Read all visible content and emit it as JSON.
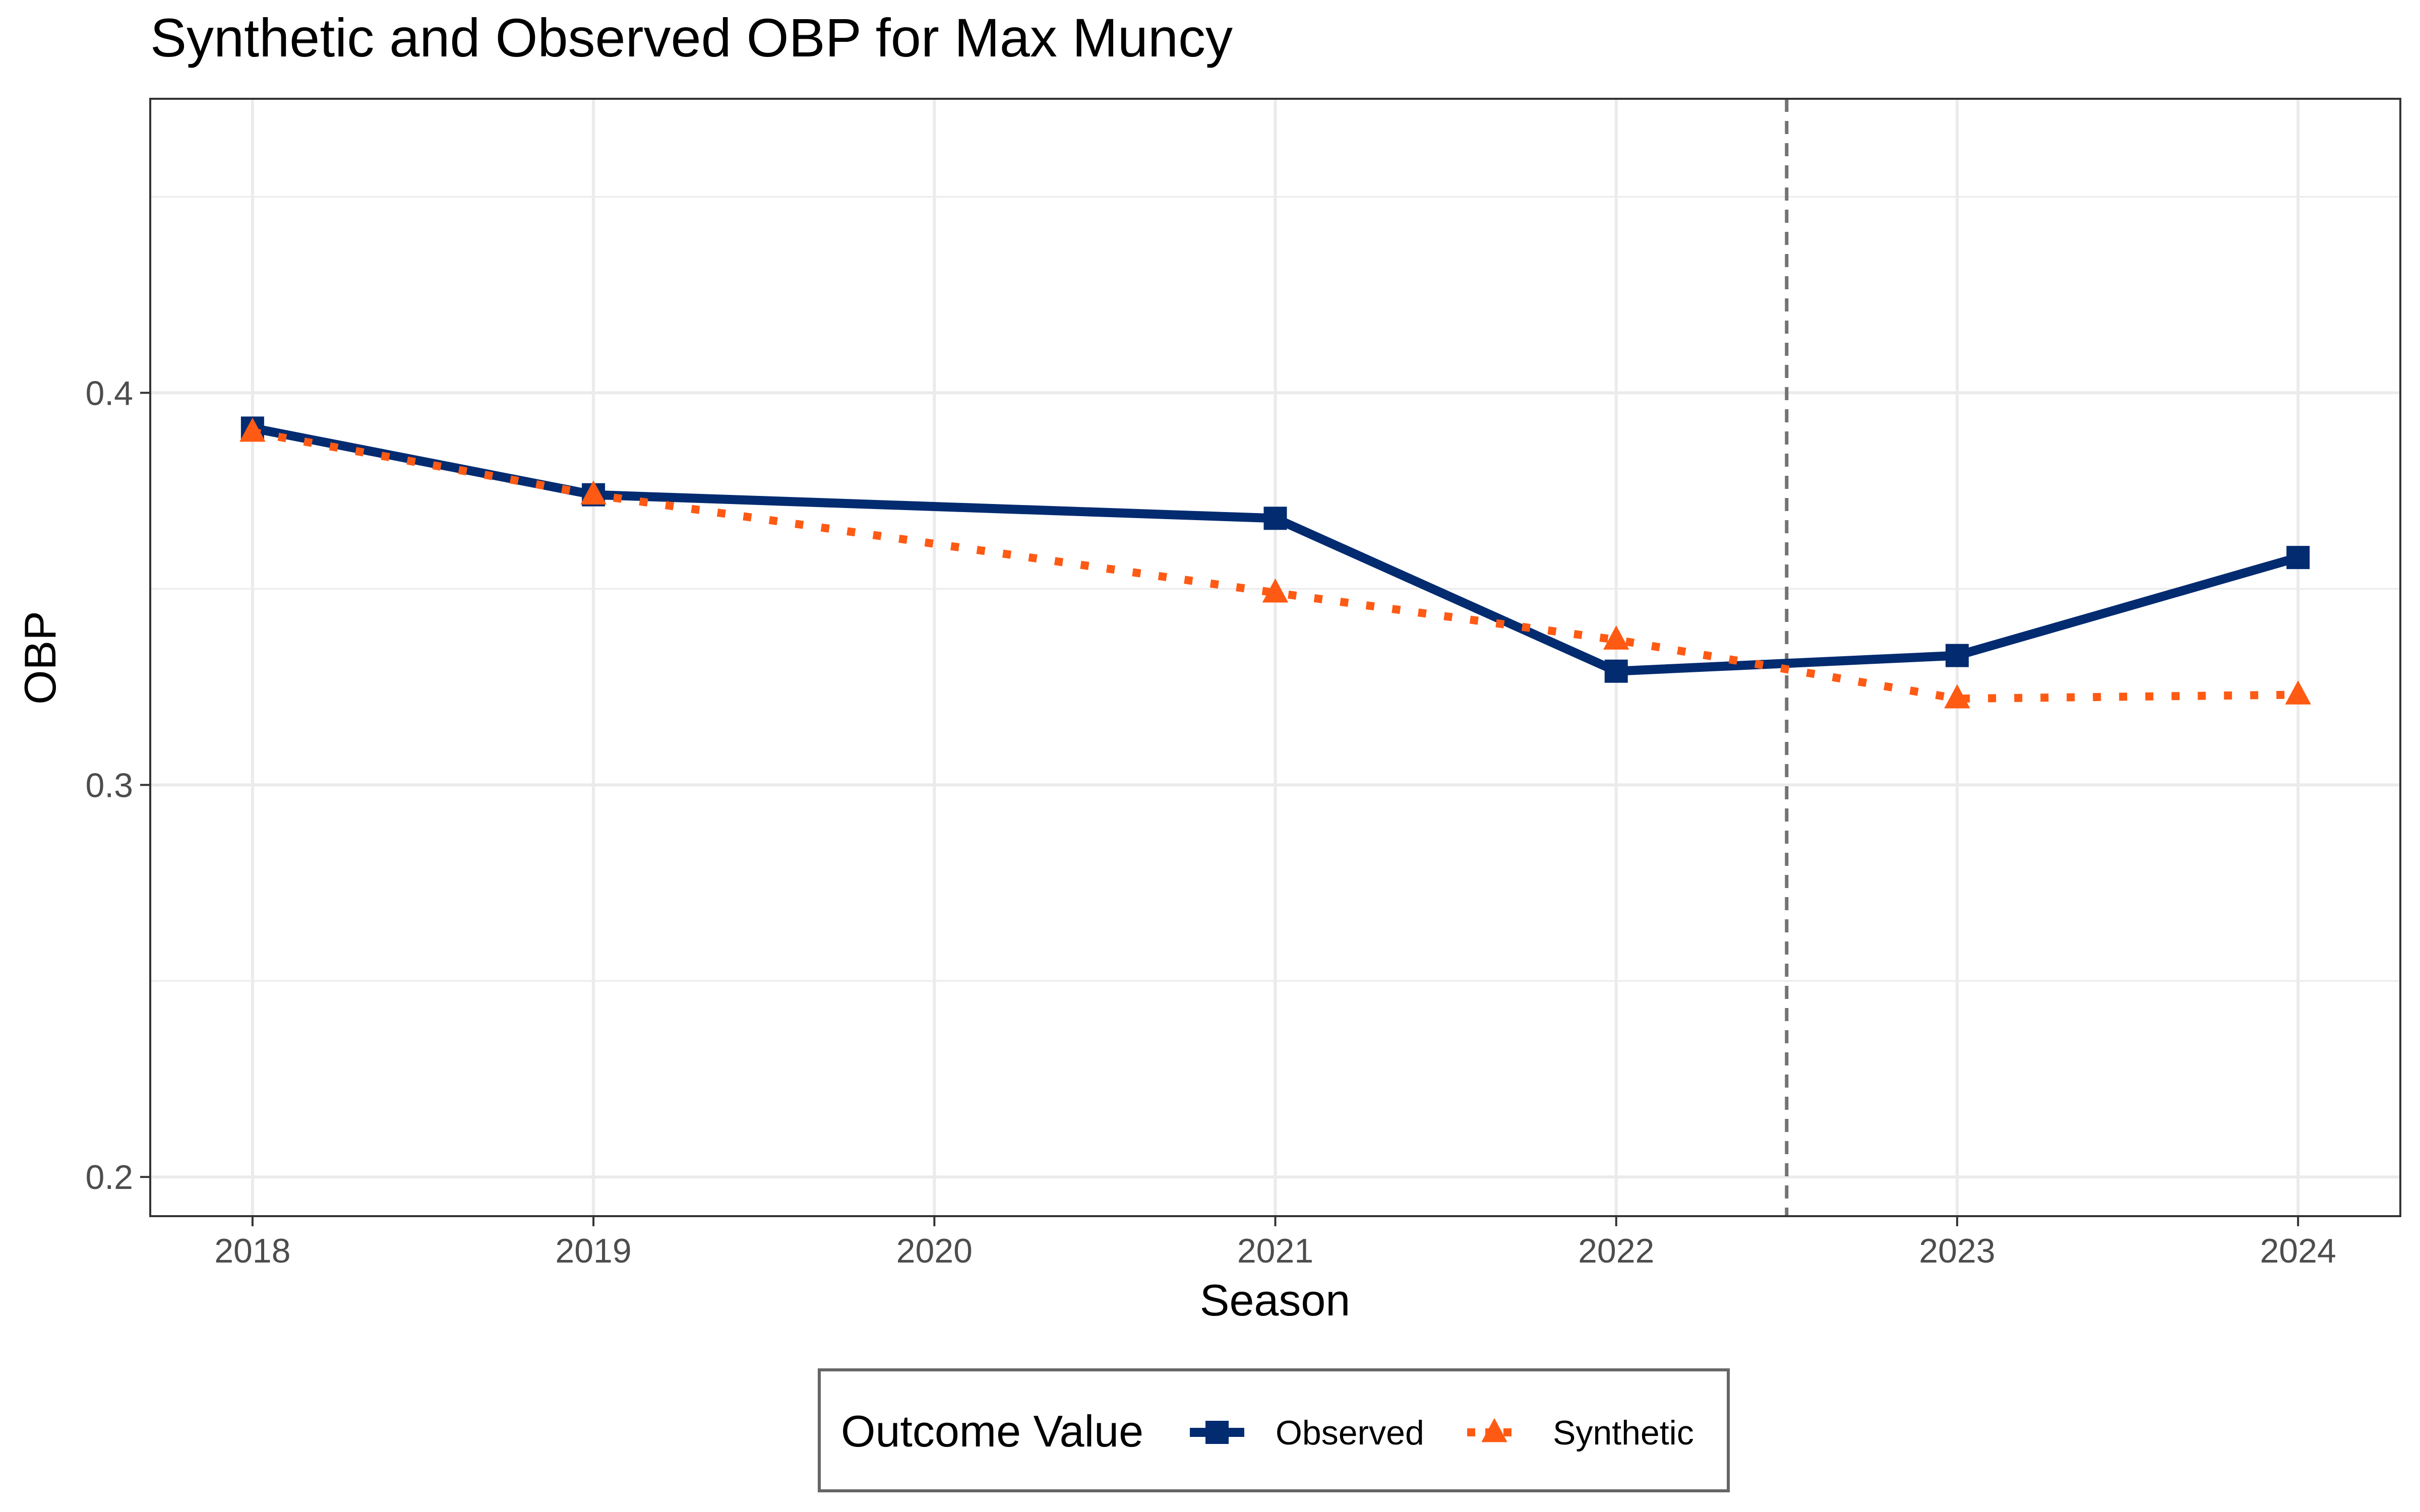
{
  "chart_data": {
    "type": "line",
    "title": "Synthetic and Observed OBP for Max Muncy",
    "xlabel": "Season",
    "ylabel": "OBP",
    "x_ticks": [
      "2018",
      "2019",
      "2020",
      "2021",
      "2022",
      "2023",
      "2024"
    ],
    "y_ticks": [
      "0.2",
      "0.3",
      "0.4"
    ],
    "xlim": [
      2017.7,
      2024.3
    ],
    "ylim": [
      0.19,
      0.475
    ],
    "treatment_line_x": 2022.5,
    "grid": true,
    "legend": {
      "title": "Outcome Value",
      "position": "bottom"
    },
    "series": [
      {
        "name": "Observed",
        "color": "#022b70",
        "line_style": "solid",
        "marker": "square",
        "x": [
          2018,
          2019,
          2021,
          2022,
          2023,
          2024
        ],
        "values": [
          0.391,
          0.374,
          0.368,
          0.329,
          0.333,
          0.358
        ]
      },
      {
        "name": "Synthetic",
        "color": "#ff5a14",
        "line_style": "dotted",
        "marker": "triangle",
        "x": [
          2018,
          2019,
          2021,
          2022,
          2023,
          2024
        ],
        "values": [
          0.39,
          0.374,
          0.349,
          0.337,
          0.322,
          0.323
        ]
      }
    ]
  }
}
